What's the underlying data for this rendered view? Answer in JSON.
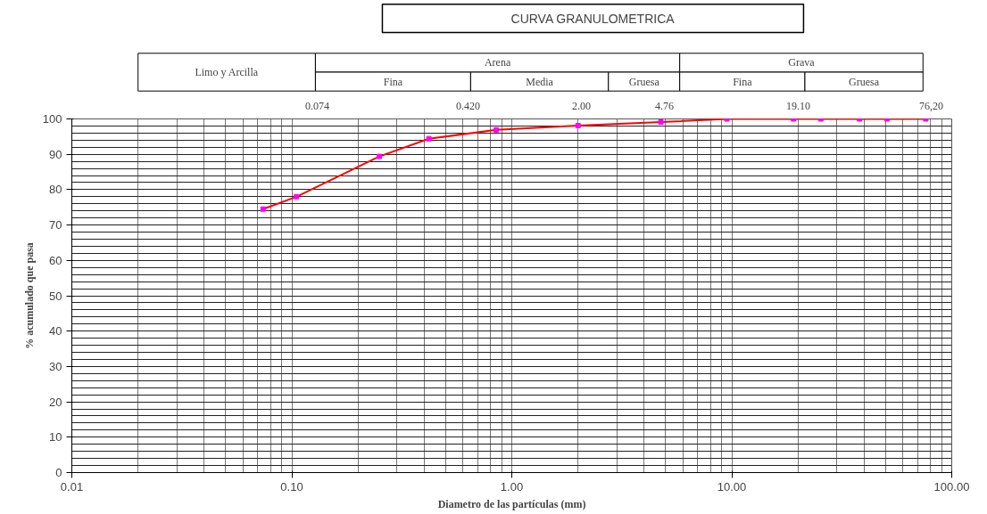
{
  "chart_data": {
    "type": "line",
    "title": "CURVA GRANULOMETRICA",
    "xlabel": "Diametro de las partículas (mm)",
    "ylabel": "% acumulado que pasa",
    "annotations": [
      "Limo y Arcilla",
      "Arena",
      "Fina",
      "Media",
      "Gruesa",
      "Grava",
      "Fina",
      "Gruesa",
      "0.074",
      "0.420",
      "2.00",
      "4.76",
      "19.10",
      "76,20"
    ],
    "series": [
      {
        "color": "#ff0000",
        "x": [
          0.074,
          0.105,
          0.25,
          0.42,
          0.85,
          2.0,
          4.76,
          9.5,
          19.1,
          25.4,
          38.1,
          50.8,
          76.2
        ],
        "values": [
          74.5,
          78,
          89.4,
          94.4,
          96.9,
          98.1,
          99.1,
          100,
          100,
          100,
          100,
          100,
          100
        ]
      }
    ],
    "log": "x",
    "marker": "square",
    "grid": true,
    "xlim": [
      0.01,
      100
    ],
    "xticks": [
      {
        "value": 0.01,
        "label": "0.01"
      },
      {
        "value": 0.1,
        "label": "0.10"
      },
      {
        "value": 1,
        "label": "1.00"
      },
      {
        "value": 10,
        "label": "10.00"
      },
      {
        "value": 100,
        "label": "100.00"
      }
    ],
    "ylim": [
      0,
      100
    ],
    "yticks": [
      0,
      10,
      20,
      30,
      40,
      50,
      60,
      70,
      80,
      90,
      100
    ]
  }
}
